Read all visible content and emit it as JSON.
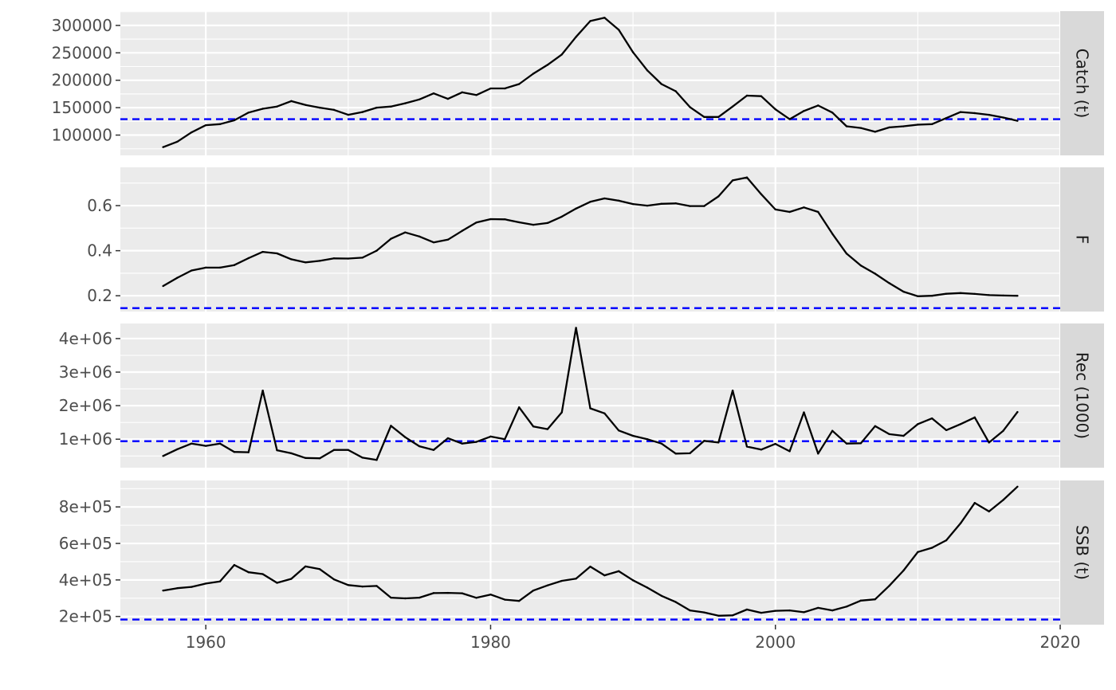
{
  "chart_data": {
    "type": "line",
    "title": "",
    "xlabel": "",
    "x_ticks": [
      1960,
      1980,
      2000,
      2020
    ],
    "x_range": [
      1954,
      2020
    ],
    "colors": {
      "series": "#000000",
      "reference": "#0000ff",
      "panel_bg": "#ebebeb",
      "strip_bg": "#d9d9d9",
      "grid": "#ffffff"
    },
    "years": [
      1957,
      1958,
      1959,
      1960,
      1961,
      1962,
      1963,
      1964,
      1965,
      1966,
      1967,
      1968,
      1969,
      1970,
      1971,
      1972,
      1973,
      1974,
      1975,
      1976,
      1977,
      1978,
      1979,
      1980,
      1981,
      1982,
      1983,
      1984,
      1985,
      1986,
      1987,
      1988,
      1989,
      1990,
      1991,
      1992,
      1993,
      1994,
      1995,
      1996,
      1997,
      1998,
      1999,
      2000,
      2001,
      2002,
      2003,
      2004,
      2005,
      2006,
      2007,
      2008,
      2009,
      2010,
      2011,
      2012,
      2013,
      2014,
      2015,
      2016,
      2017
    ],
    "panels": [
      {
        "name": "Catch (t)",
        "ylim": [
          63000,
          326000
        ],
        "y_ticks": [
          100000,
          150000,
          200000,
          250000,
          300000
        ],
        "y_tick_labels": [
          "100000",
          "150000",
          "200000",
          "250000",
          "300000"
        ],
        "reference": 129000,
        "values": [
          78000,
          88000,
          105000,
          118000,
          120000,
          127000,
          141000,
          148000,
          152000,
          162000,
          155000,
          150000,
          146000,
          137000,
          142000,
          150000,
          152000,
          158000,
          165000,
          176000,
          166000,
          178000,
          173000,
          185000,
          185000,
          193000,
          212000,
          228000,
          247000,
          279000,
          308000,
          314000,
          292000,
          251000,
          218000,
          193000,
          180000,
          151000,
          133000,
          133000,
          152000,
          172000,
          171000,
          147000,
          129000,
          144000,
          154000,
          141000,
          116000,
          113000,
          106000,
          114000,
          116000,
          119000,
          120000,
          131000,
          142000,
          140000,
          137000,
          132000,
          126000
        ]
      },
      {
        "name": "F",
        "ylim": [
          0.13,
          0.77
        ],
        "y_ticks": [
          0.2,
          0.4,
          0.6
        ],
        "y_tick_labels": [
          "0.2",
          "0.4",
          "0.6"
        ],
        "reference": 0.145,
        "values": [
          0.243,
          0.28,
          0.312,
          0.325,
          0.325,
          0.336,
          0.367,
          0.395,
          0.388,
          0.362,
          0.348,
          0.355,
          0.366,
          0.365,
          0.369,
          0.4,
          0.453,
          0.481,
          0.463,
          0.437,
          0.449,
          0.488,
          0.525,
          0.54,
          0.539,
          0.526,
          0.515,
          0.523,
          0.551,
          0.587,
          0.617,
          0.632,
          0.622,
          0.607,
          0.6,
          0.608,
          0.61,
          0.598,
          0.598,
          0.641,
          0.712,
          0.725,
          0.651,
          0.583,
          0.572,
          0.592,
          0.572,
          0.475,
          0.387,
          0.334,
          0.298,
          0.256,
          0.218,
          0.198,
          0.2,
          0.209,
          0.212,
          0.208,
          0.203,
          0.201,
          0.2
        ]
      },
      {
        "name": "Rec (1000)",
        "ylim": [
          150000,
          4450000
        ],
        "y_ticks": [
          1000000,
          2000000,
          3000000,
          4000000
        ],
        "y_tick_labels": [
          "1e+06",
          "2e+06",
          "3e+06",
          "4e+06"
        ],
        "reference": 940000,
        "values": [
          500000,
          700000,
          870000,
          800000,
          870000,
          620000,
          610000,
          2450000,
          670000,
          580000,
          440000,
          430000,
          680000,
          680000,
          450000,
          380000,
          1400000,
          1060000,
          790000,
          680000,
          1030000,
          870000,
          920000,
          1080000,
          1000000,
          1950000,
          1380000,
          1300000,
          1800000,
          4320000,
          1920000,
          1770000,
          1260000,
          1100000,
          1000000,
          870000,
          570000,
          580000,
          950000,
          900000,
          2450000,
          780000,
          690000,
          860000,
          640000,
          1800000,
          570000,
          1250000,
          870000,
          880000,
          1390000,
          1150000,
          1100000,
          1450000,
          1620000,
          1270000,
          1450000,
          1650000,
          900000,
          1250000,
          1810000
        ]
      },
      {
        "name": "SSB (t)",
        "ylim": [
          155000,
          945000
        ],
        "y_ticks": [
          200000,
          400000,
          600000,
          800000
        ],
        "y_tick_labels": [
          "2e+05",
          "4e+05",
          "6e+05",
          "8e+05"
        ],
        "reference": 183000,
        "values": [
          342000,
          355000,
          362000,
          380000,
          392000,
          482000,
          442000,
          432000,
          384000,
          406000,
          474000,
          459000,
          403000,
          372000,
          364000,
          367000,
          303000,
          299000,
          303000,
          328000,
          329000,
          327000,
          302000,
          320000,
          292000,
          285000,
          342000,
          370000,
          395000,
          407000,
          473000,
          425000,
          448000,
          398000,
          358000,
          313000,
          279000,
          233000,
          222000,
          204000,
          206000,
          238000,
          220000,
          231000,
          233000,
          223000,
          247000,
          233000,
          254000,
          287000,
          294000,
          368000,
          452000,
          553000,
          576000,
          617000,
          710000,
          822000,
          775000,
          838000,
          911000
        ]
      }
    ]
  }
}
